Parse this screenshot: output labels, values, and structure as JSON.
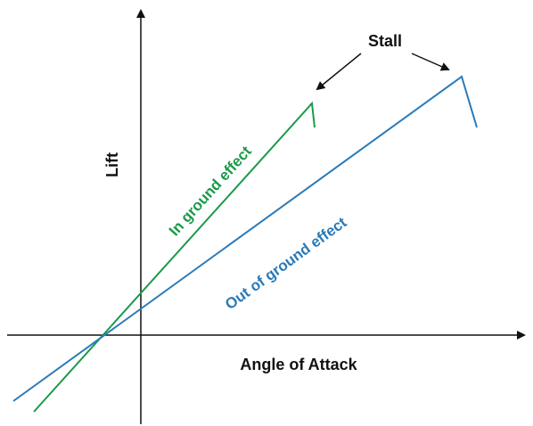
{
  "labels": {
    "stall": "Stall",
    "y_axis": "Lift",
    "x_axis": "Angle of Attack",
    "in_ground": "In ground effect",
    "out_ground": "Out of ground effect"
  }
}
